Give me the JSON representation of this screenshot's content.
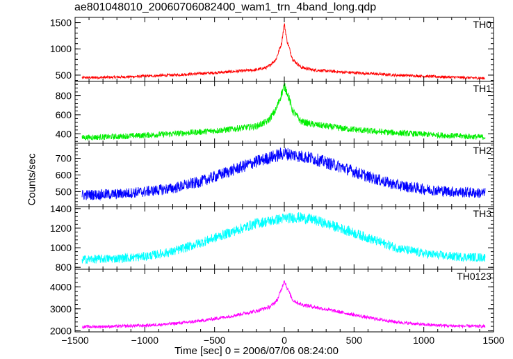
{
  "chart_data": {
    "type": "line",
    "title": "ae801048010_20060706082400_wam1_trn_4band_long.qdp",
    "xlabel": "Time [sec] 0 = 2006/07/06 08:24:00",
    "ylabel": "Counts/sec",
    "xlim": [
      -1500,
      1500
    ],
    "xticks": [
      -1500,
      -1000,
      -500,
      0,
      500,
      1000,
      1500
    ],
    "xtick_labels": [
      "−1500",
      "−1000",
      "−500",
      "0",
      "500",
      "1000",
      "1500"
    ],
    "panels": [
      {
        "name": "TH0",
        "color": "#ff0000",
        "ylim": [
          380,
          1600
        ],
        "yticks": [
          500,
          1000,
          1500
        ],
        "ytick_labels": [
          "500",
          "1000",
          "1500"
        ],
        "x": [
          -1450,
          -1200,
          -1000,
          -800,
          -600,
          -400,
          -200,
          -120,
          -60,
          -20,
          0,
          20,
          60,
          120,
          200,
          400,
          600,
          800,
          1000,
          1200,
          1440
        ],
        "y": [
          450,
          460,
          480,
          500,
          530,
          560,
          600,
          650,
          800,
          1100,
          1480,
          1150,
          800,
          650,
          600,
          560,
          530,
          500,
          480,
          460,
          440
        ],
        "noise": 25
      },
      {
        "name": "TH1",
        "color": "#00ee00",
        "ylim": [
          300,
          950
        ],
        "yticks": [
          400,
          600,
          800
        ],
        "ytick_labels": [
          "400",
          "600",
          "800"
        ],
        "x": [
          -1450,
          -1200,
          -1000,
          -800,
          -600,
          -400,
          -200,
          -120,
          -60,
          -20,
          0,
          20,
          60,
          120,
          200,
          400,
          600,
          800,
          1000,
          1200,
          1440
        ],
        "y": [
          360,
          370,
          385,
          400,
          420,
          445,
          480,
          530,
          650,
          820,
          900,
          840,
          640,
          530,
          500,
          460,
          430,
          410,
          395,
          380,
          365
        ],
        "noise": 30
      },
      {
        "name": "TH2",
        "color": "#0000ff",
        "ylim": [
          410,
          790
        ],
        "yticks": [
          500,
          600,
          700
        ],
        "ytick_labels": [
          "500",
          "600",
          "700"
        ],
        "x": [
          -1450,
          -1200,
          -1000,
          -800,
          -600,
          -400,
          -200,
          0,
          200,
          400,
          600,
          800,
          1000,
          1200,
          1440
        ],
        "y": [
          480,
          485,
          500,
          520,
          560,
          620,
          680,
          730,
          700,
          650,
          590,
          540,
          515,
          500,
          490
        ],
        "noise": 32
      },
      {
        "name": "TH3",
        "color": "#00ffff",
        "ylim": [
          780,
          1420
        ],
        "yticks": [
          800,
          1000,
          1200,
          1400
        ],
        "ytick_labels": [
          "800",
          "1000",
          "1200",
          "1400"
        ],
        "x": [
          -1450,
          -1200,
          -1000,
          -800,
          -600,
          -400,
          -200,
          0,
          100,
          200,
          400,
          600,
          800,
          1000,
          1200,
          1440
        ],
        "y": [
          880,
          890,
          910,
          960,
          1050,
          1150,
          1250,
          1300,
          1310,
          1290,
          1200,
          1100,
          1000,
          940,
          910,
          900
        ],
        "noise": 45
      },
      {
        "name": "TH0123",
        "color": "#ff00ff",
        "ylim": [
          1950,
          4800
        ],
        "yticks": [
          2000,
          3000,
          4000
        ],
        "ytick_labels": [
          "2000",
          "3000",
          "4000"
        ],
        "x": [
          -1450,
          -1200,
          -1000,
          -800,
          -600,
          -400,
          -200,
          -100,
          -50,
          -20,
          0,
          20,
          60,
          120,
          200,
          400,
          600,
          800,
          1000,
          1200,
          1440
        ],
        "y": [
          2180,
          2200,
          2240,
          2320,
          2450,
          2650,
          2900,
          3100,
          3400,
          3900,
          4300,
          3950,
          3400,
          3200,
          3100,
          2850,
          2600,
          2400,
          2280,
          2220,
          2200
        ],
        "noise": 70
      }
    ]
  }
}
